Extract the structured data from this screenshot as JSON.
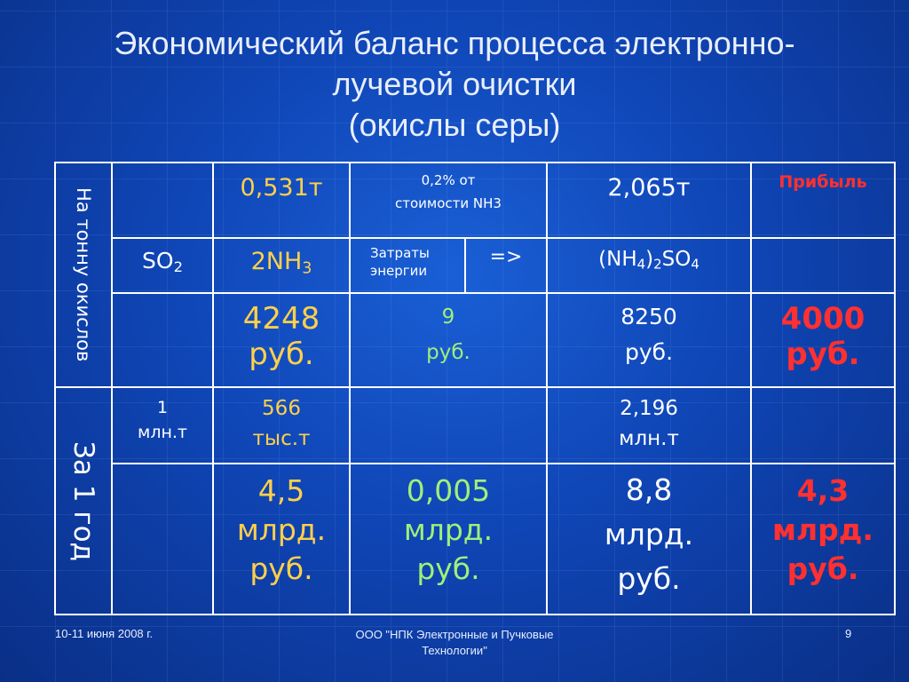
{
  "title": {
    "line1": "Экономический баланс процесса электронно-",
    "line2": "лучевой очистки",
    "line3": "(окислы серы)"
  },
  "table": {
    "row_group_1": "На тонну окислов",
    "row_group_2": "За 1 год",
    "r1": {
      "c2": "0,531т",
      "c3_line1": "0,2% от",
      "c3_line2": "стоимости NH3",
      "c4": "2,065т",
      "c5": "Прибыль"
    },
    "r2": {
      "c1_base": "SO",
      "c1_sub": "2",
      "c2_base": "2NH",
      "c2_sub": "3",
      "c3a_line1": "Затраты",
      "c3a_line2": "энергии",
      "c3b": "=>",
      "c4_a": "(NH",
      "c4_sub1": "4",
      "c4_b": ")",
      "c4_sub2": "2",
      "c4_c": "SO",
      "c4_sub3": "4"
    },
    "r3": {
      "c2_line1": "4248",
      "c2_line2": "руб.",
      "c3_line1": "9",
      "c3_line2": "руб.",
      "c4_line1": "8250",
      "c4_line2": "руб.",
      "c5_line1": "4000",
      "c5_line2": "руб."
    },
    "r4": {
      "c1_line1": "1",
      "c1_line2": "млн.т",
      "c2_line1": "566",
      "c2_line2": "тыс.т",
      "c4_line1": "2,196",
      "c4_line2": "млн.т"
    },
    "r5": {
      "c2_line1": "4,5",
      "c2_line2": "млрд.",
      "c2_line3": "руб.",
      "c3_line1": "0,005",
      "c3_line2": "млрд.",
      "c3_line3": "руб.",
      "c4_line1": "8,8",
      "c4_line2": "млрд.",
      "c4_line3": "руб.",
      "c5_line1": "4,3",
      "c5_line2": "млрд.",
      "c5_line3": "руб."
    }
  },
  "footer": {
    "date": "10-11 июня 2008 г.",
    "org_line1": "ООО \"НПК Электронные и Пучковые",
    "org_line2": "Технологии\"",
    "page": "9"
  },
  "colors": {
    "background": "#0f45b5",
    "yellow": "#ffd04a",
    "green": "#9ff07a",
    "red": "#ff3030"
  }
}
